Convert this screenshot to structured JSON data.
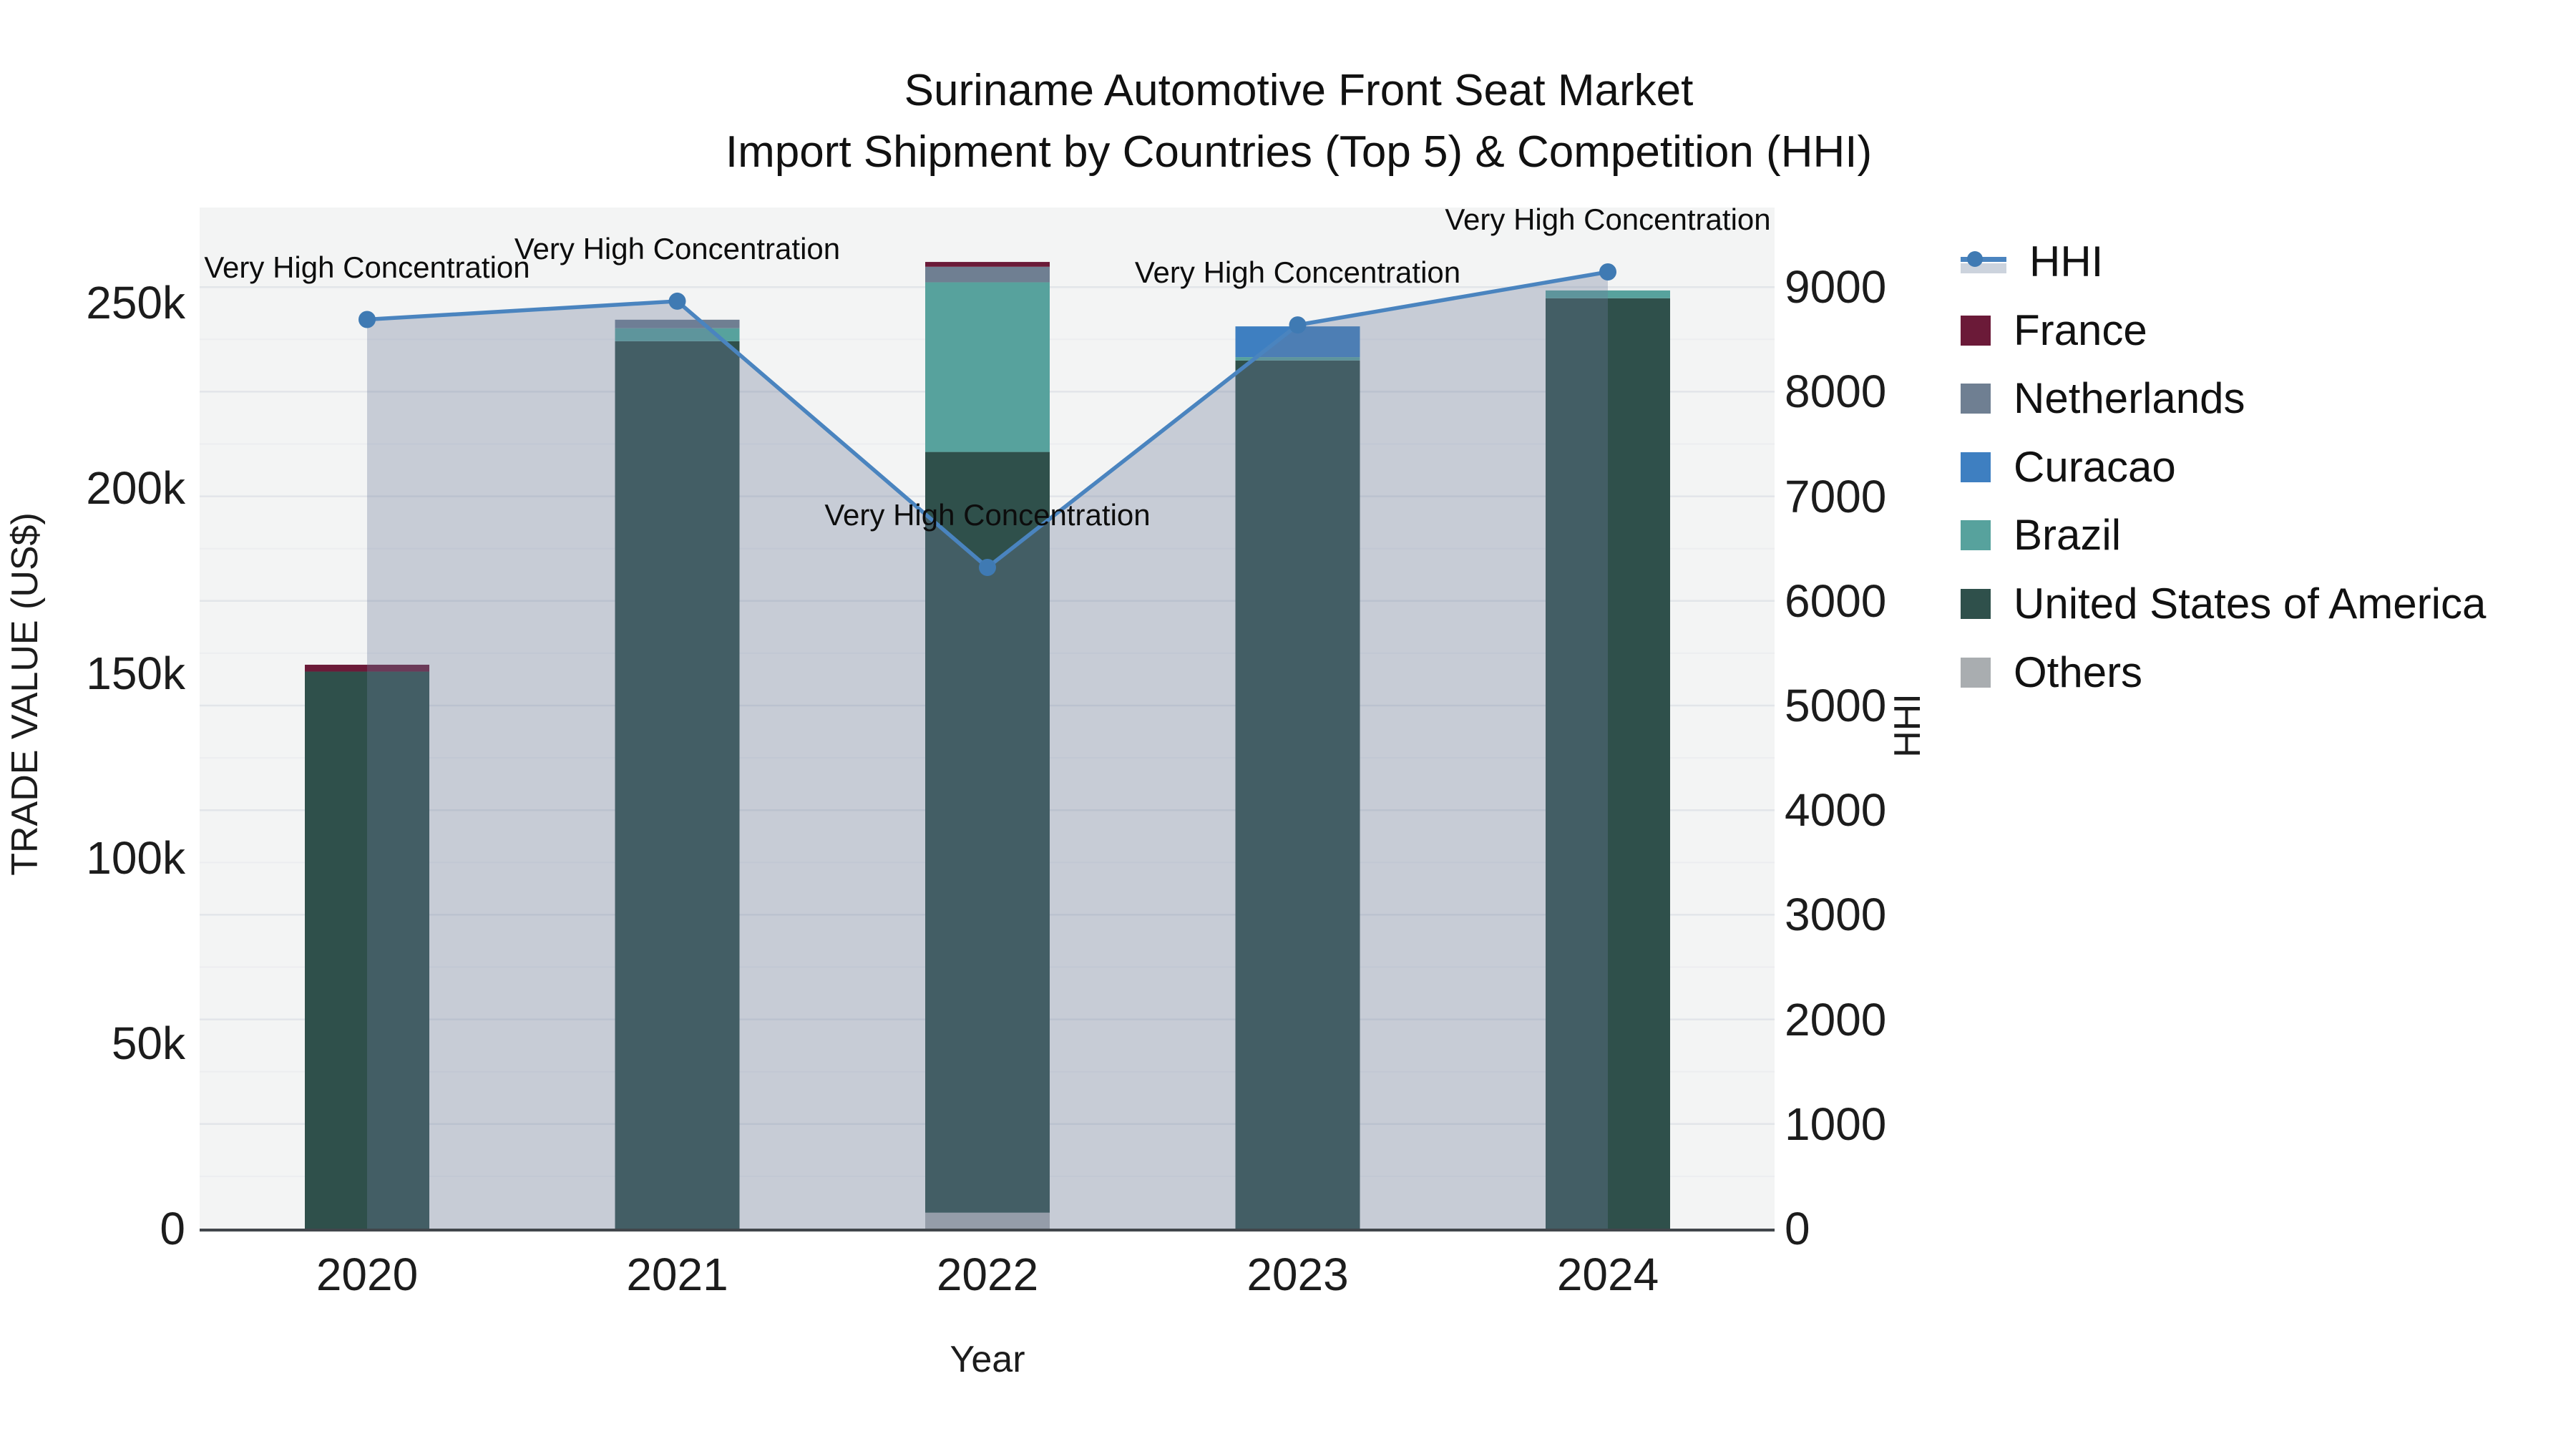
{
  "title": {
    "line1": "Suriname Automotive Front Seat Market",
    "line2": "Import Shipment by Countries (Top 5) & Competition (HHI)"
  },
  "legend": {
    "items": [
      {
        "label": "HHI",
        "kind": "line"
      },
      {
        "label": "France",
        "kind": "swatch",
        "color": "#6b1a38"
      },
      {
        "label": "Netherlands",
        "kind": "swatch",
        "color": "#6f7f92"
      },
      {
        "label": "Curacao",
        "kind": "swatch",
        "color": "#3e7fc1"
      },
      {
        "label": "Brazil",
        "kind": "swatch",
        "color": "#57a29d"
      },
      {
        "label": "United States of America",
        "kind": "swatch",
        "color": "#2f504b"
      },
      {
        "label": "Others",
        "kind": "swatch",
        "color": "#a9adb0"
      }
    ]
  },
  "chart_data": {
    "type": "bar+line",
    "title": "Suriname Automotive Front Seat Market — Import Shipment by Countries (Top 5) & Competition (HHI)",
    "categories": [
      "2020",
      "2021",
      "2022",
      "2023",
      "2024"
    ],
    "stack_series": [
      {
        "name": "France",
        "color": "#6b1a38",
        "values": [
          1850,
          0,
          1300,
          0,
          0
        ]
      },
      {
        "name": "Netherlands",
        "color": "#6f7f92",
        "values": [
          0,
          2300,
          4200,
          0,
          0
        ]
      },
      {
        "name": "Curacao",
        "color": "#3e7fc1",
        "values": [
          0,
          0,
          0,
          8300,
          0
        ]
      },
      {
        "name": "Brazil",
        "color": "#57a29d",
        "values": [
          0,
          3500,
          45800,
          900,
          2100
        ]
      },
      {
        "name": "United States of America",
        "color": "#2f504b",
        "values": [
          150400,
          239600,
          205400,
          234400,
          251200
        ]
      },
      {
        "name": "Others",
        "color": "#a9adb0",
        "values": [
          0,
          0,
          4300,
          0,
          0
        ]
      }
    ],
    "stack_order_bottom_to_top": [
      "Others",
      "United States of America",
      "Brazil",
      "Curacao",
      "Netherlands",
      "France"
    ],
    "bar_totals": [
      152250,
      245400,
      261000,
      243600,
      253300
    ],
    "line_series": {
      "name": "HHI",
      "color": "#4a84bf",
      "marker_color": "#3f7ab3",
      "area_fill": "rgba(110,125,155,0.33)",
      "values": [
        8690,
        8865,
        6320,
        8638,
        9145
      ]
    },
    "annotation_text": "Very High Concentration",
    "x": {
      "label": "Year"
    },
    "y_left": {
      "label": "TRADE VALUE (US$)",
      "ticks": [
        "0",
        "50k",
        "100k",
        "150k",
        "200k",
        "250k"
      ],
      "tick_values": [
        0,
        50000,
        100000,
        150000,
        200000,
        250000
      ],
      "range": [
        0,
        262500
      ]
    },
    "y_right": {
      "label": "HHI",
      "ticks": [
        "0",
        "1000",
        "2000",
        "3000",
        "4000",
        "5000",
        "6000",
        "7000",
        "8000",
        "9000"
      ],
      "tick_values": [
        0,
        1000,
        2000,
        3000,
        4000,
        5000,
        6000,
        7000,
        8000,
        9000
      ],
      "range": [
        0,
        9200
      ]
    },
    "grid": "horizontal lines every 500 HHI",
    "legend_position": "right",
    "plot_background": "#f3f4f4"
  }
}
